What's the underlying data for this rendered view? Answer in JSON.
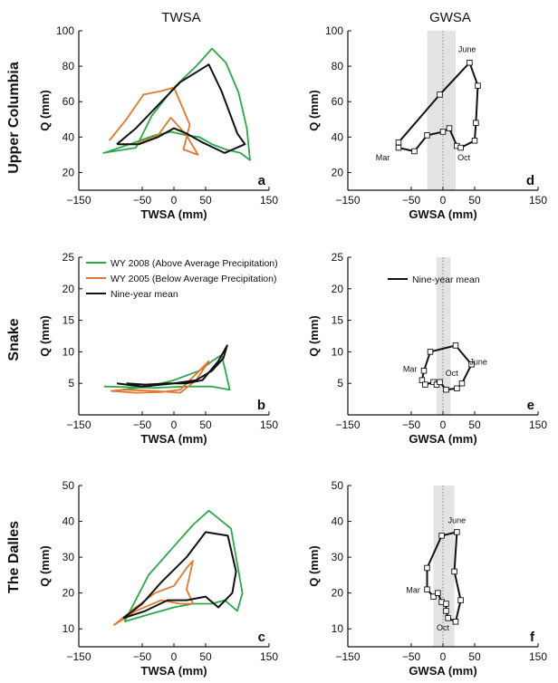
{
  "figure": {
    "col_titles": [
      "TWSA",
      "GWSA"
    ],
    "row_labels": [
      "Upper Columbia",
      "Snake",
      "The Dalles"
    ]
  },
  "colors": {
    "wy2008": "#2aa84a",
    "wy2005": "#e0782e",
    "mean": "#111111",
    "band": "#e3e3e3"
  },
  "chart_data": [
    {
      "id": "a",
      "type": "line",
      "panel_letter": "a",
      "xlabel": "TWSA (mm)",
      "ylabel": "Q (mm)",
      "xlim": [
        -150,
        150
      ],
      "ylim": [
        10,
        100
      ],
      "xticks": [
        -150,
        -50,
        0,
        50,
        150
      ],
      "xtick_labels": [
        "−150",
        "−50",
        "0",
        "50",
        "150"
      ],
      "yticks": [
        20,
        40,
        60,
        80,
        100
      ],
      "ytick_labels": [
        "20",
        "40",
        "60",
        "80",
        "100"
      ],
      "series": [
        {
          "key": "wy2008",
          "x": [
            -112,
            -60,
            -35,
            0,
            35,
            60,
            82,
            102,
            115,
            120,
            105,
            82,
            60,
            40,
            20,
            -5,
            -30,
            -70,
            -110
          ],
          "y": [
            31,
            34,
            52,
            68,
            80,
            90,
            82,
            65,
            45,
            27,
            31,
            33,
            36,
            40,
            41,
            43,
            41,
            36,
            31
          ]
        },
        {
          "key": "wy2005",
          "x": [
            -102,
            -75,
            -48,
            -20,
            0,
            25,
            15,
            38,
            20,
            -5,
            -25,
            -60,
            -80
          ],
          "y": [
            38,
            50,
            64,
            66,
            68,
            47,
            33,
            30,
            41,
            51,
            41,
            36,
            36
          ]
        },
        {
          "key": "mean",
          "x": [
            -90,
            -60,
            -25,
            10,
            55,
            75,
            100,
            112,
            80,
            45,
            20,
            0,
            -25,
            -55,
            -90
          ],
          "y": [
            36,
            45,
            58,
            71,
            81,
            66,
            42,
            36,
            31,
            37,
            42,
            45,
            40,
            36,
            36
          ]
        }
      ]
    },
    {
      "id": "d",
      "type": "line",
      "panel_letter": "d",
      "xlabel": "GWSA (mm)",
      "ylabel": "Q (mm)",
      "xlim": [
        -150,
        150
      ],
      "ylim": [
        10,
        100
      ],
      "xticks": [
        -150,
        -50,
        0,
        50,
        150
      ],
      "xtick_labels": [
        "−150",
        "−50",
        "0",
        "50",
        "150"
      ],
      "yticks": [
        20,
        40,
        60,
        80,
        100
      ],
      "ytick_labels": [
        "20",
        "40",
        "60",
        "80",
        "100"
      ],
      "band": [
        -25,
        20
      ],
      "series": [
        {
          "key": "mean",
          "markers": true,
          "x": [
            -70,
            -70,
            -45,
            -25,
            0,
            10,
            22,
            28,
            50,
            52,
            55,
            42,
            -5,
            -70
          ],
          "y": [
            37,
            34,
            32,
            41,
            43,
            45,
            35,
            34,
            38,
            48,
            69,
            82,
            64,
            37
          ]
        }
      ],
      "annotations": [
        {
          "text": "June",
          "x": 38,
          "y": 88
        },
        {
          "text": "Mar",
          "x": -95,
          "y": 27
        },
        {
          "text": "Oct",
          "x": 33,
          "y": 27
        }
      ]
    },
    {
      "id": "b",
      "type": "line",
      "panel_letter": "b",
      "xlabel": "TWSA (mm)",
      "ylabel": "Q (mm)",
      "xlim": [
        -150,
        150
      ],
      "ylim": [
        0,
        25
      ],
      "xticks": [
        -150,
        -50,
        0,
        50,
        150
      ],
      "xtick_labels": [
        "−150",
        "−50",
        "0",
        "50",
        "150"
      ],
      "yticks": [
        5,
        10,
        15,
        20,
        25
      ],
      "ytick_labels": [
        "5",
        "10",
        "15",
        "20",
        "25"
      ],
      "series": [
        {
          "key": "wy2008",
          "x": [
            -80,
            -40,
            0,
            40,
            60,
            75,
            80,
            88,
            60,
            20,
            -30,
            -110
          ],
          "y": [
            4,
            4.5,
            5.5,
            7,
            8.5,
            9.5,
            7.5,
            4,
            4.5,
            4.5,
            4.3,
            4.5
          ]
        },
        {
          "key": "wy2005",
          "x": [
            -100,
            -60,
            -20,
            10,
            30,
            45,
            55,
            35,
            10,
            -30,
            -80,
            -100
          ],
          "y": [
            3.8,
            3.5,
            3.6,
            4,
            6,
            7.5,
            8.5,
            5.5,
            3.5,
            3.8,
            4,
            3.8
          ]
        },
        {
          "key": "mean",
          "x": [
            -90,
            -50,
            0,
            35,
            60,
            78,
            84,
            70,
            45,
            20,
            -10,
            -45,
            -75
          ],
          "y": [
            5,
            4.5,
            5,
            5.5,
            7,
            9,
            11,
            8.5,
            5.5,
            5,
            5,
            4.8,
            5
          ]
        }
      ]
    },
    {
      "id": "e",
      "type": "line",
      "panel_letter": "e",
      "xlabel": "GWSA (mm)",
      "ylabel": "Q (mm)",
      "xlim": [
        -150,
        150
      ],
      "ylim": [
        0,
        25
      ],
      "xticks": [
        -150,
        -50,
        0,
        50,
        150
      ],
      "xtick_labels": [
        "−150",
        "−50",
        "0",
        "50",
        "150"
      ],
      "yticks": [
        5,
        10,
        15,
        20,
        25
      ],
      "ytick_labels": [
        "5",
        "10",
        "15",
        "20",
        "25"
      ],
      "band": [
        -10,
        12
      ],
      "series": [
        {
          "key": "mean",
          "markers": true,
          "x": [
            -20,
            -30,
            -33,
            -28,
            -15,
            -10,
            -5,
            5,
            22,
            30,
            45,
            20,
            -20
          ],
          "y": [
            10,
            7,
            5.5,
            4.8,
            5.2,
            4.8,
            5.2,
            4,
            4.2,
            5,
            8,
            11,
            10
          ]
        }
      ],
      "annotations": [
        {
          "text": "June",
          "x": 56,
          "y": 8
        },
        {
          "text": "Mar",
          "x": -52,
          "y": 6.8
        },
        {
          "text": "Oct",
          "x": 14,
          "y": 6.2
        }
      ]
    },
    {
      "id": "c",
      "type": "line",
      "panel_letter": "c",
      "xlabel": "TWSA (mm)",
      "ylabel": "Q (mm)",
      "xlim": [
        -150,
        150
      ],
      "ylim": [
        5,
        50
      ],
      "xticks": [
        -150,
        -50,
        0,
        50,
        150
      ],
      "xtick_labels": [
        "−150",
        "−50",
        "0",
        "50",
        "150"
      ],
      "yticks": [
        10,
        20,
        30,
        40,
        50
      ],
      "ytick_labels": [
        "10",
        "20",
        "30",
        "40",
        "50"
      ],
      "series": [
        {
          "key": "wy2008",
          "x": [
            -78,
            -40,
            0,
            30,
            55,
            90,
            108,
            100,
            80,
            60,
            30,
            0,
            -40,
            -78
          ],
          "y": [
            12,
            25,
            33,
            39,
            43,
            38,
            20,
            15,
            18,
            17,
            17,
            16,
            14,
            12
          ]
        },
        {
          "key": "wy2005",
          "x": [
            -95,
            -60,
            -30,
            0,
            20,
            30,
            20,
            30,
            10,
            -20,
            -60,
            -95
          ],
          "y": [
            11,
            16,
            20,
            22,
            27,
            29,
            21,
            17,
            17,
            18,
            15,
            11
          ]
        },
        {
          "key": "mean",
          "x": [
            -80,
            -50,
            -20,
            20,
            50,
            85,
            98,
            92,
            70,
            50,
            20,
            -10,
            -45,
            -80
          ],
          "y": [
            13,
            17,
            23,
            30,
            37,
            36,
            26,
            20,
            16,
            19,
            18,
            18,
            15,
            13
          ]
        }
      ]
    },
    {
      "id": "f",
      "type": "line",
      "panel_letter": "f",
      "xlabel": "GWSA (mm)",
      "ylabel": "Q (mm)",
      "xlim": [
        -150,
        150
      ],
      "ylim": [
        5,
        50
      ],
      "xticks": [
        -150,
        -50,
        0,
        50,
        150
      ],
      "xtick_labels": [
        "−150",
        "−50",
        "0",
        "50",
        "150"
      ],
      "yticks": [
        10,
        20,
        30,
        40,
        50
      ],
      "ytick_labels": [
        "10",
        "20",
        "30",
        "40",
        "50"
      ],
      "band": [
        -15,
        18
      ],
      "series": [
        {
          "key": "mean",
          "markers": true,
          "x": [
            -2,
            -25,
            -25,
            -15,
            -8,
            -2,
            5,
            5,
            8,
            20,
            28,
            18,
            22,
            -2
          ],
          "y": [
            36,
            27,
            21,
            19,
            20,
            17.5,
            17,
            15,
            13,
            12,
            18,
            26,
            37,
            36
          ]
        }
      ],
      "annotations": [
        {
          "text": "June",
          "x": 22,
          "y": 39.5
        },
        {
          "text": "Mar",
          "x": -47,
          "y": 20
        },
        {
          "text": "Oct",
          "x": 0,
          "y": 9.5
        }
      ]
    }
  ],
  "legends": [
    {
      "panel": "b",
      "entries": [
        {
          "key": "wy2008",
          "label": "WY 2008 (Above Average Precipitation)"
        },
        {
          "key": "wy2005",
          "label": "WY 2005 (Below Average Precipitation)"
        },
        {
          "key": "mean",
          "label": "Nine-year mean"
        }
      ]
    },
    {
      "panel": "e",
      "entries": [
        {
          "key": "mean",
          "label": "Nine-year mean"
        }
      ]
    }
  ]
}
